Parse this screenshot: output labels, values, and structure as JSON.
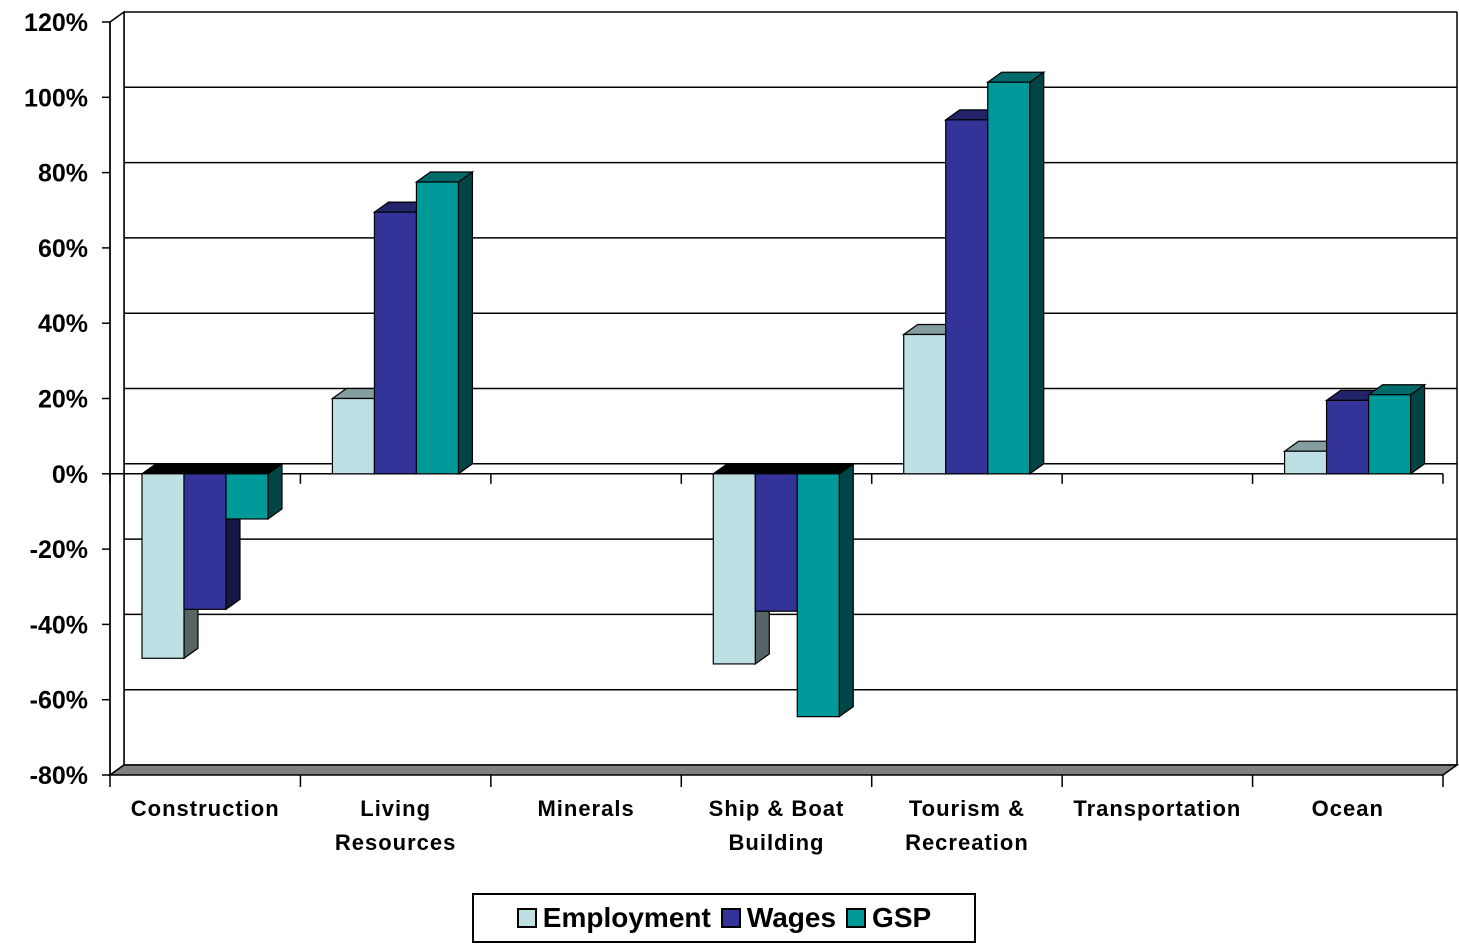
{
  "chart_data": {
    "type": "bar",
    "categories": [
      "Construction",
      "Living Resources",
      "Minerals",
      "Ship & Boat Building",
      "Tourism & Recreation",
      "Transportation",
      "Ocean"
    ],
    "category_lines": [
      [
        "Construction"
      ],
      [
        "Living",
        "Resources"
      ],
      [
        "Minerals"
      ],
      [
        "Ship & Boat",
        "Building"
      ],
      [
        "Tourism &",
        "Recreation"
      ],
      [
        "Transportation"
      ],
      [
        "Ocean"
      ]
    ],
    "series": [
      {
        "name": "Employment",
        "color": "#BCE0E3",
        "values": [
          -49,
          20,
          null,
          -50.5,
          37,
          null,
          6
        ]
      },
      {
        "name": "Wages",
        "color": "#333399",
        "values": [
          -36,
          69.5,
          null,
          -36.5,
          94,
          null,
          19.5
        ]
      },
      {
        "name": "GSP",
        "color": "#009999",
        "values": [
          -12,
          77.5,
          null,
          -64.5,
          104,
          null,
          21
        ]
      }
    ],
    "yticks": [
      "120%",
      "100%",
      "80%",
      "60%",
      "40%",
      "20%",
      "0%",
      "-20%",
      "-40%",
      "-60%",
      "-80%"
    ],
    "ylim": [
      -80,
      120
    ],
    "grid": true,
    "legend_position": "bottom",
    "style": "3d-clustered-column"
  }
}
